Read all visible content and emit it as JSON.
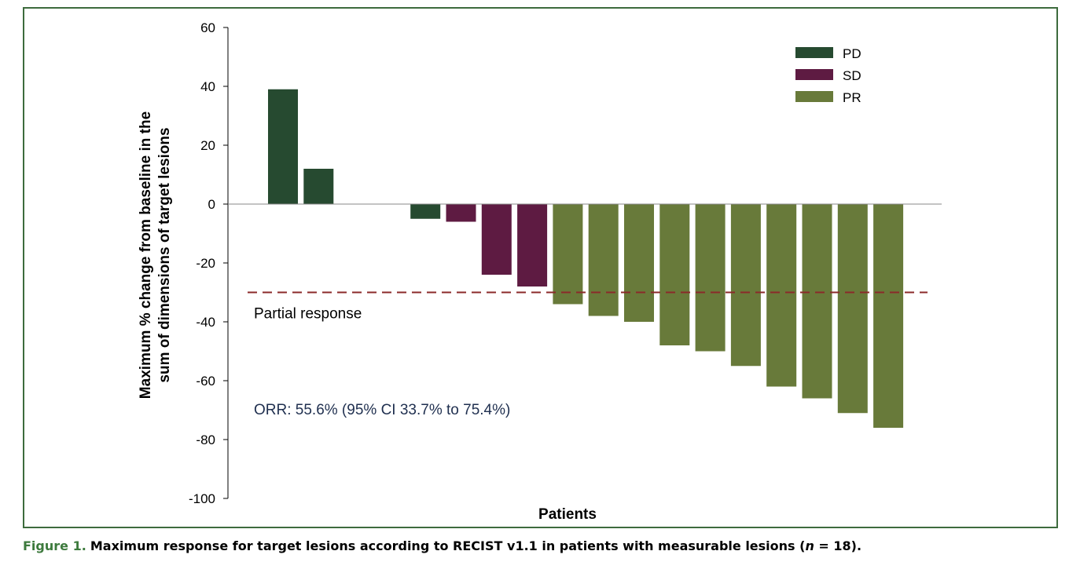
{
  "chart_data": {
    "type": "bar",
    "title": "",
    "xlabel": "Patients",
    "ylabel_lines": [
      "Maximum % change from baseline in the",
      "sum of dimensions of target lesions"
    ],
    "ylim": [
      -100,
      60
    ],
    "yticks": [
      60,
      40,
      20,
      0,
      -20,
      -40,
      -60,
      -80,
      -100
    ],
    "gap_slots": 2,
    "bars": [
      {
        "value": 39,
        "series": "PD"
      },
      {
        "value": 12,
        "series": "PD"
      },
      {
        "value": -5,
        "series": "PD"
      },
      {
        "value": -6,
        "series": "SD"
      },
      {
        "value": -24,
        "series": "SD"
      },
      {
        "value": -28,
        "series": "SD"
      },
      {
        "value": -34,
        "series": "PR"
      },
      {
        "value": -38,
        "series": "PR"
      },
      {
        "value": -40,
        "series": "PR"
      },
      {
        "value": -48,
        "series": "PR"
      },
      {
        "value": -50,
        "series": "PR"
      },
      {
        "value": -55,
        "series": "PR"
      },
      {
        "value": -62,
        "series": "PR"
      },
      {
        "value": -66,
        "series": "PR"
      },
      {
        "value": -71,
        "series": "PR"
      },
      {
        "value": -76,
        "series": "PR"
      }
    ],
    "series": [
      {
        "name": "PD",
        "color": "#264a30"
      },
      {
        "name": "SD",
        "color": "#5e1b42"
      },
      {
        "name": "PR",
        "color": "#687a3a"
      }
    ],
    "legend": "top-right",
    "threshold": {
      "value": -30,
      "label": "Partial response",
      "color": "#8b2a2a"
    },
    "annotation": "ORR: 55.6% (95% CI 33.7% to 75.4%)",
    "annotation_color": "#1f2f4f"
  },
  "caption": {
    "label": "Figure 1.",
    "text": "Maximum response for target lesions according to RECIST v1.1 in patients with measurable lesions (",
    "n_symbol": "n",
    "equals": " = 18)."
  }
}
